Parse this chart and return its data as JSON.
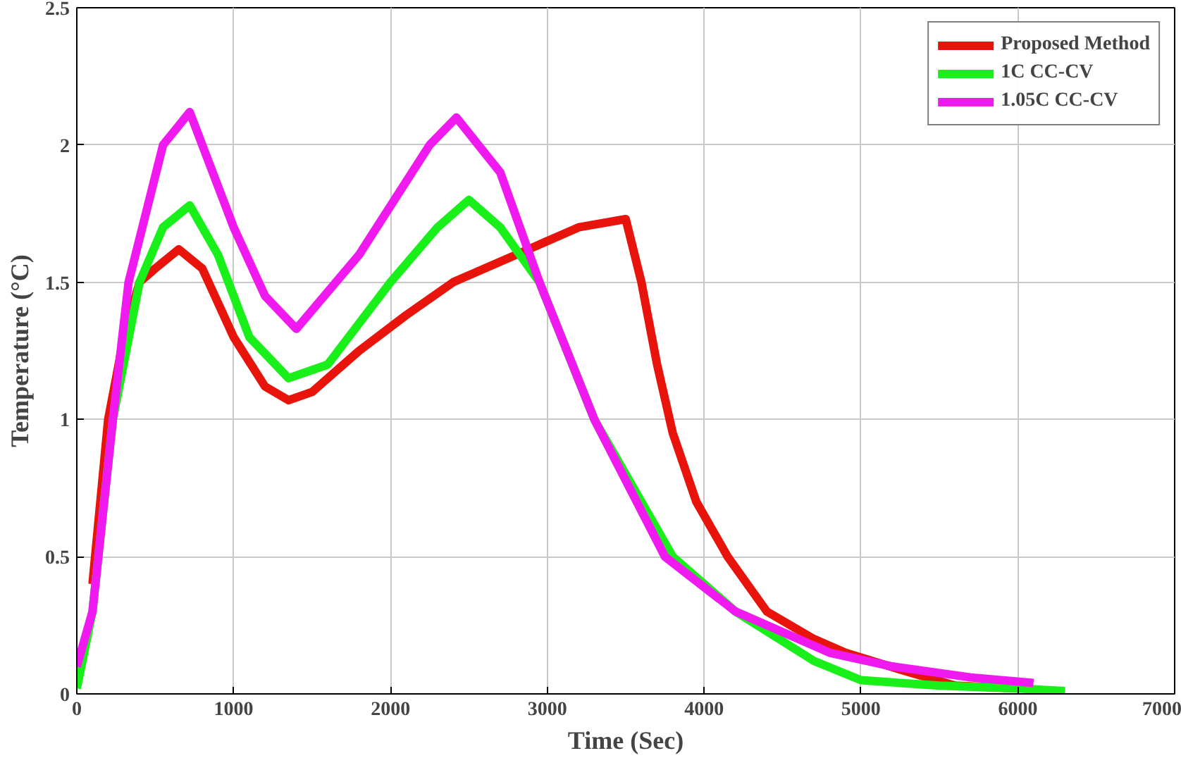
{
  "chart_data": {
    "type": "line",
    "xlabel": "Time (Sec)",
    "ylabel": "Temperature (°C)",
    "xlim": [
      0,
      7000
    ],
    "ylim": [
      0,
      2.5
    ],
    "xticks": [
      0,
      1000,
      2000,
      3000,
      4000,
      5000,
      6000,
      7000
    ],
    "yticks": [
      0,
      0.5,
      1,
      1.5,
      2,
      2.5
    ],
    "grid": true,
    "legend": "top right",
    "line_style": "solid",
    "series": [
      {
        "name": "Proposed Method",
        "color": "#e8140c",
        "x": [
          100,
          200,
          300,
          400,
          500,
          650,
          800,
          1000,
          1200,
          1350,
          1500,
          1800,
          2100,
          2400,
          2800,
          3200,
          3500,
          3600,
          3700,
          3800,
          3950,
          4150,
          4400,
          4700,
          4900,
          5300,
          5600,
          6000
        ],
        "values": [
          0.4,
          1.0,
          1.3,
          1.5,
          1.55,
          1.62,
          1.55,
          1.3,
          1.12,
          1.07,
          1.1,
          1.25,
          1.38,
          1.5,
          1.6,
          1.7,
          1.73,
          1.5,
          1.2,
          0.95,
          0.7,
          0.5,
          0.3,
          0.2,
          0.15,
          0.08,
          0.03,
          0.02
        ]
      },
      {
        "name": "1C CC-CV",
        "color": "#19f019",
        "x": [
          0,
          100,
          230,
          400,
          550,
          720,
          900,
          1100,
          1350,
          1600,
          2000,
          2300,
          2500,
          2700,
          2950,
          3300,
          3800,
          4200,
          4700,
          5000,
          5500,
          6000,
          6300
        ],
        "values": [
          0.02,
          0.3,
          1.0,
          1.5,
          1.7,
          1.78,
          1.6,
          1.3,
          1.15,
          1.2,
          1.5,
          1.7,
          1.8,
          1.7,
          1.5,
          1.0,
          0.5,
          0.3,
          0.12,
          0.05,
          0.03,
          0.02,
          0.01
        ]
      },
      {
        "name": "1.05C CC-CV",
        "color": "#f01af0",
        "x": [
          0,
          100,
          230,
          330,
          550,
          720,
          1000,
          1200,
          1400,
          1800,
          2250,
          2420,
          2700,
          2950,
          3300,
          3750,
          4200,
          4800,
          5200,
          5700,
          6100
        ],
        "values": [
          0.1,
          0.3,
          1.0,
          1.5,
          2.0,
          2.12,
          1.7,
          1.45,
          1.33,
          1.6,
          2.0,
          2.1,
          1.9,
          1.5,
          1.0,
          0.5,
          0.3,
          0.15,
          0.1,
          0.06,
          0.04
        ]
      }
    ]
  }
}
